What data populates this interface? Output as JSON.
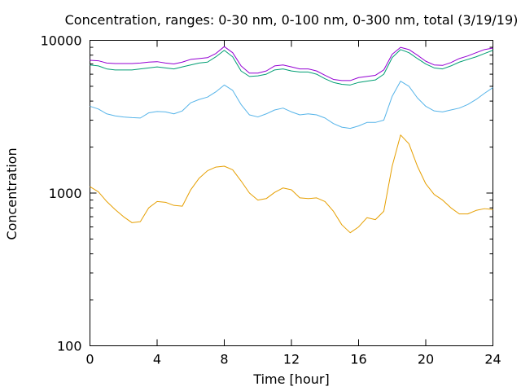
{
  "chart_data": {
    "type": "line",
    "title": "Concentration, ranges: 0-30 nm, 0-100 nm, 0-300 nm, total (3/19/19)",
    "xlabel": "Time [hour]",
    "ylabel": "Concentration",
    "xlim": [
      0,
      24
    ],
    "ylim": [
      100,
      10000
    ],
    "yscale": "log",
    "grid": false,
    "x_ticks": [
      "0",
      "4",
      "8",
      "12",
      "16",
      "20",
      "24"
    ],
    "y_ticks": [
      "100",
      "1000",
      "10000"
    ],
    "x": [
      0,
      0.5,
      1,
      1.5,
      2,
      2.5,
      3,
      3.5,
      4,
      4.5,
      5,
      5.5,
      6,
      6.5,
      7,
      7.5,
      8,
      8.5,
      9,
      9.5,
      10,
      10.5,
      11,
      11.5,
      12,
      12.5,
      13,
      13.5,
      14,
      14.5,
      15,
      15.5,
      16,
      16.5,
      17,
      17.5,
      18,
      18.5,
      19,
      19.5,
      20,
      20.5,
      21,
      21.5,
      22,
      22.5,
      23,
      23.5,
      24
    ],
    "series": [
      {
        "color": "#e69f00",
        "values": [
          1100,
          1020,
          880,
          780,
          700,
          640,
          650,
          800,
          880,
          870,
          830,
          820,
          1050,
          1250,
          1400,
          1480,
          1500,
          1420,
          1200,
          1000,
          900,
          920,
          1010,
          1080,
          1050,
          930,
          920,
          930,
          880,
          760,
          620,
          550,
          600,
          690,
          670,
          760,
          1500,
          2400,
          2100,
          1500,
          1150,
          980,
          900,
          800,
          730,
          730,
          770,
          790,
          780
        ]
      },
      {
        "color": "#56b4e9",
        "values": [
          3700,
          3550,
          3300,
          3200,
          3150,
          3120,
          3100,
          3350,
          3420,
          3400,
          3300,
          3450,
          3900,
          4100,
          4250,
          4600,
          5100,
          4700,
          3800,
          3250,
          3150,
          3300,
          3500,
          3600,
          3400,
          3250,
          3300,
          3250,
          3100,
          2850,
          2700,
          2650,
          2750,
          2900,
          2900,
          3000,
          4300,
          5400,
          5000,
          4200,
          3700,
          3450,
          3400,
          3500,
          3600,
          3800,
          4100,
          4500,
          4900
        ]
      },
      {
        "color": "#009e73",
        "values": [
          6900,
          6800,
          6500,
          6400,
          6400,
          6400,
          6500,
          6600,
          6700,
          6600,
          6500,
          6700,
          6900,
          7100,
          7200,
          7800,
          8600,
          7800,
          6300,
          5800,
          5850,
          6000,
          6400,
          6500,
          6300,
          6200,
          6200,
          6000,
          5600,
          5300,
          5150,
          5100,
          5300,
          5400,
          5500,
          6000,
          7700,
          8700,
          8300,
          7600,
          7000,
          6600,
          6500,
          6800,
          7200,
          7500,
          7800,
          8200,
          8600
        ]
      },
      {
        "color": "#9400d3",
        "values": [
          7400,
          7350,
          7100,
          7050,
          7050,
          7050,
          7100,
          7200,
          7250,
          7100,
          7000,
          7200,
          7500,
          7600,
          7700,
          8200,
          9100,
          8300,
          6800,
          6100,
          6100,
          6300,
          6800,
          6900,
          6700,
          6500,
          6500,
          6300,
          5900,
          5550,
          5450,
          5450,
          5700,
          5800,
          5900,
          6400,
          8100,
          9000,
          8700,
          8000,
          7300,
          6900,
          6850,
          7150,
          7600,
          7900,
          8300,
          8700,
          8900
        ]
      }
    ]
  }
}
